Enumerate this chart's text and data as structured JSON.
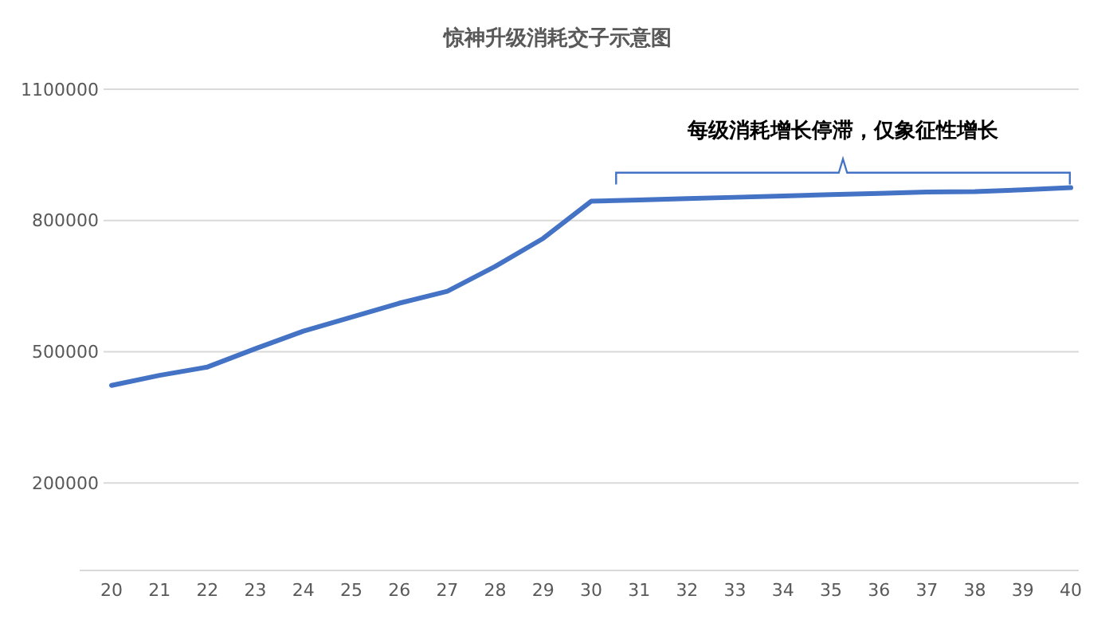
{
  "chart_data": {
    "type": "line",
    "title": "惊神升级消耗交子示意图",
    "categories": [
      "20",
      "21",
      "22",
      "23",
      "24",
      "25",
      "26",
      "27",
      "28",
      "29",
      "30",
      "31",
      "32",
      "33",
      "34",
      "35",
      "36",
      "37",
      "38",
      "39",
      "40"
    ],
    "series": [
      {
        "color": "#4472c4",
        "values": [
          423000,
          446000,
          465000,
          507000,
          547000,
          579000,
          611000,
          638000,
          695000,
          759000,
          844000,
          847000,
          850000,
          853000,
          856000,
          859000,
          862000,
          865000,
          866000,
          870000,
          875000
        ]
      }
    ],
    "ylim": [
      0,
      1100000
    ],
    "yticks": [
      200000,
      500000,
      800000,
      1100000
    ],
    "grid": "y",
    "marker": "none",
    "line_style": "solid",
    "annotations": [
      "每级消耗增长停滞，仅象征性增长"
    ]
  }
}
